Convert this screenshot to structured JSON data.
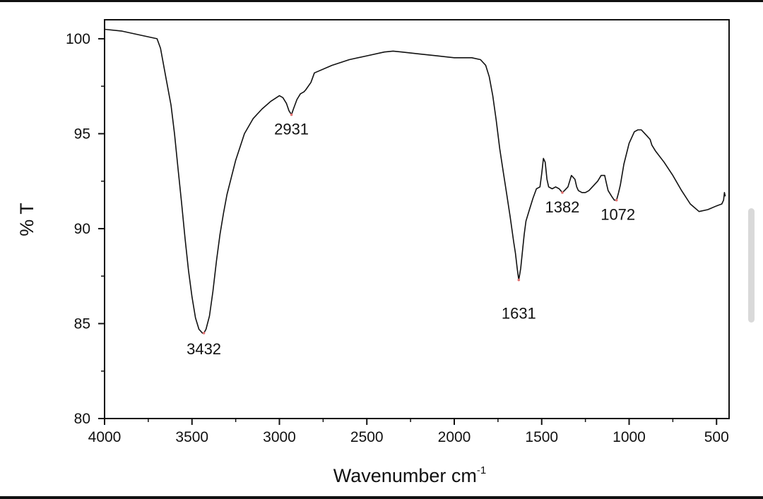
{
  "chart_data": {
    "type": "line",
    "title": "",
    "xlabel": "Wavenumber cm",
    "xlabel_superscript": "-1",
    "ylabel": "% T",
    "xlim": [
      4000,
      400
    ],
    "ylim": [
      80,
      101
    ],
    "x_ticks": [
      4000,
      3500,
      3000,
      2500,
      2000,
      1500,
      1000,
      500
    ],
    "y_ticks": [
      80,
      85,
      90,
      95,
      100
    ],
    "grid": false,
    "legend": "none",
    "series": [
      {
        "x": [
          4000,
          3900,
          3800,
          3700,
          3680,
          3650,
          3620,
          3600,
          3580,
          3560,
          3540,
          3520,
          3500,
          3480,
          3460,
          3440,
          3432,
          3420,
          3400,
          3380,
          3360,
          3340,
          3320,
          3300,
          3250,
          3200,
          3150,
          3100,
          3050,
          3000,
          2980,
          2960,
          2945,
          2931,
          2920,
          2900,
          2880,
          2860,
          2850,
          2820,
          2800,
          2700,
          2600,
          2500,
          2400,
          2350,
          2300,
          2200,
          2100,
          2000,
          1950,
          1900,
          1850,
          1820,
          1800,
          1780,
          1760,
          1740,
          1720,
          1700,
          1680,
          1660,
          1650,
          1640,
          1631,
          1620,
          1610,
          1600,
          1590,
          1570,
          1550,
          1530,
          1510,
          1500,
          1490,
          1480,
          1470,
          1460,
          1440,
          1420,
          1400,
          1382,
          1370,
          1350,
          1330,
          1310,
          1300,
          1290,
          1270,
          1250,
          1230,
          1200,
          1180,
          1160,
          1140,
          1130,
          1120,
          1100,
          1085,
          1072,
          1060,
          1050,
          1030,
          1000,
          970,
          950,
          930,
          920,
          900,
          880,
          870,
          850,
          800,
          750,
          700,
          650,
          600,
          550,
          500,
          470,
          460,
          455,
          450
        ],
        "y": [
          100.5,
          100.4,
          100.2,
          100.0,
          99.5,
          98.0,
          96.5,
          95.0,
          93.2,
          91.4,
          89.5,
          87.8,
          86.4,
          85.3,
          84.7,
          84.5,
          84.5,
          84.7,
          85.4,
          86.7,
          88.3,
          89.7,
          90.8,
          91.8,
          93.6,
          95.0,
          95.8,
          96.3,
          96.7,
          97.0,
          96.9,
          96.6,
          96.2,
          96.0,
          96.3,
          96.8,
          97.1,
          97.2,
          97.3,
          97.7,
          98.2,
          98.6,
          98.9,
          99.1,
          99.3,
          99.35,
          99.3,
          99.2,
          99.1,
          99.0,
          99.0,
          99.0,
          98.9,
          98.6,
          98.0,
          97.0,
          95.7,
          94.2,
          93.0,
          91.8,
          90.6,
          89.3,
          88.7,
          87.9,
          87.3,
          87.9,
          88.8,
          89.7,
          90.4,
          91.0,
          91.6,
          92.1,
          92.2,
          92.9,
          93.7,
          93.5,
          92.6,
          92.2,
          92.1,
          92.2,
          92.1,
          91.9,
          92.0,
          92.2,
          92.8,
          92.6,
          92.2,
          92.0,
          91.9,
          91.9,
          92.0,
          92.3,
          92.5,
          92.8,
          92.8,
          92.4,
          92.0,
          91.7,
          91.5,
          91.5,
          91.9,
          92.3,
          93.4,
          94.5,
          95.1,
          95.2,
          95.2,
          95.1,
          94.9,
          94.7,
          94.4,
          94.1,
          93.5,
          92.8,
          92.0,
          91.3,
          90.9,
          91.0,
          91.2,
          91.3,
          91.5,
          91.9,
          91.7
        ],
        "peaks": [
          {
            "x": 3432,
            "y": 84.5,
            "label": "3432"
          },
          {
            "x": 2931,
            "y": 96.0,
            "label": "2931"
          },
          {
            "x": 1631,
            "y": 87.3,
            "label": "1631"
          },
          {
            "x": 1382,
            "y": 91.9,
            "label": "1382"
          },
          {
            "x": 1072,
            "y": 91.5,
            "label": "1072"
          }
        ]
      }
    ]
  }
}
